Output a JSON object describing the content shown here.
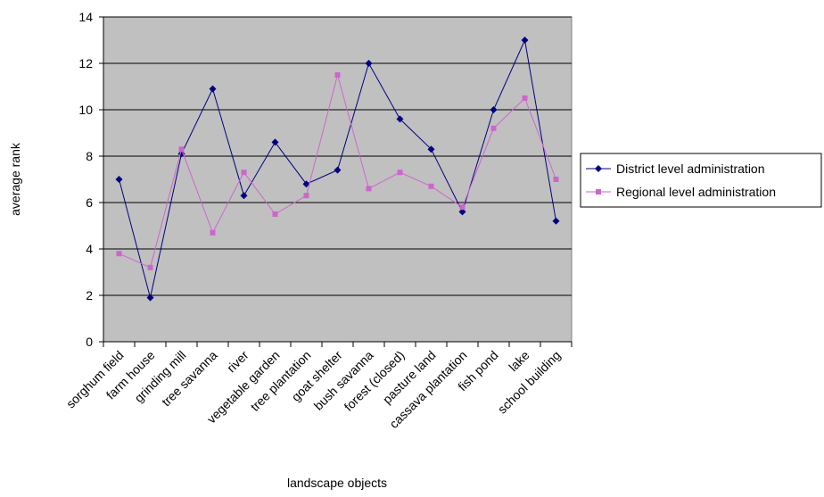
{
  "chart_data": {
    "type": "line",
    "xlabel": "landscape objects",
    "ylabel": "average rank",
    "ylim": [
      0,
      14
    ],
    "yticks": [
      0,
      2,
      4,
      6,
      8,
      10,
      12,
      14
    ],
    "grid": true,
    "legend_position": "right",
    "plot_background": "#c0c0c0",
    "categories": [
      "sorghum field",
      "farm house",
      "grinding mill",
      "tree savanna",
      "river",
      "vegetable garden",
      "tree plantation",
      "goat shelter",
      "bush savanna",
      "forest (closed)",
      "pasture land",
      "cassava plantation",
      "fish pond",
      "lake",
      "school building"
    ],
    "series": [
      {
        "name": "District level administration",
        "color": "#000080",
        "marker": "diamond",
        "values": [
          7.0,
          1.9,
          8.1,
          10.9,
          6.3,
          8.6,
          6.8,
          7.4,
          12.0,
          9.6,
          8.3,
          5.6,
          10.0,
          13.0,
          5.2
        ]
      },
      {
        "name": "Regional level administration",
        "color": "#cc66cc",
        "marker": "square",
        "values": [
          3.8,
          3.2,
          8.3,
          4.7,
          7.3,
          5.5,
          6.3,
          11.5,
          6.6,
          7.3,
          6.7,
          5.8,
          9.2,
          10.5,
          7.0
        ]
      }
    ]
  }
}
